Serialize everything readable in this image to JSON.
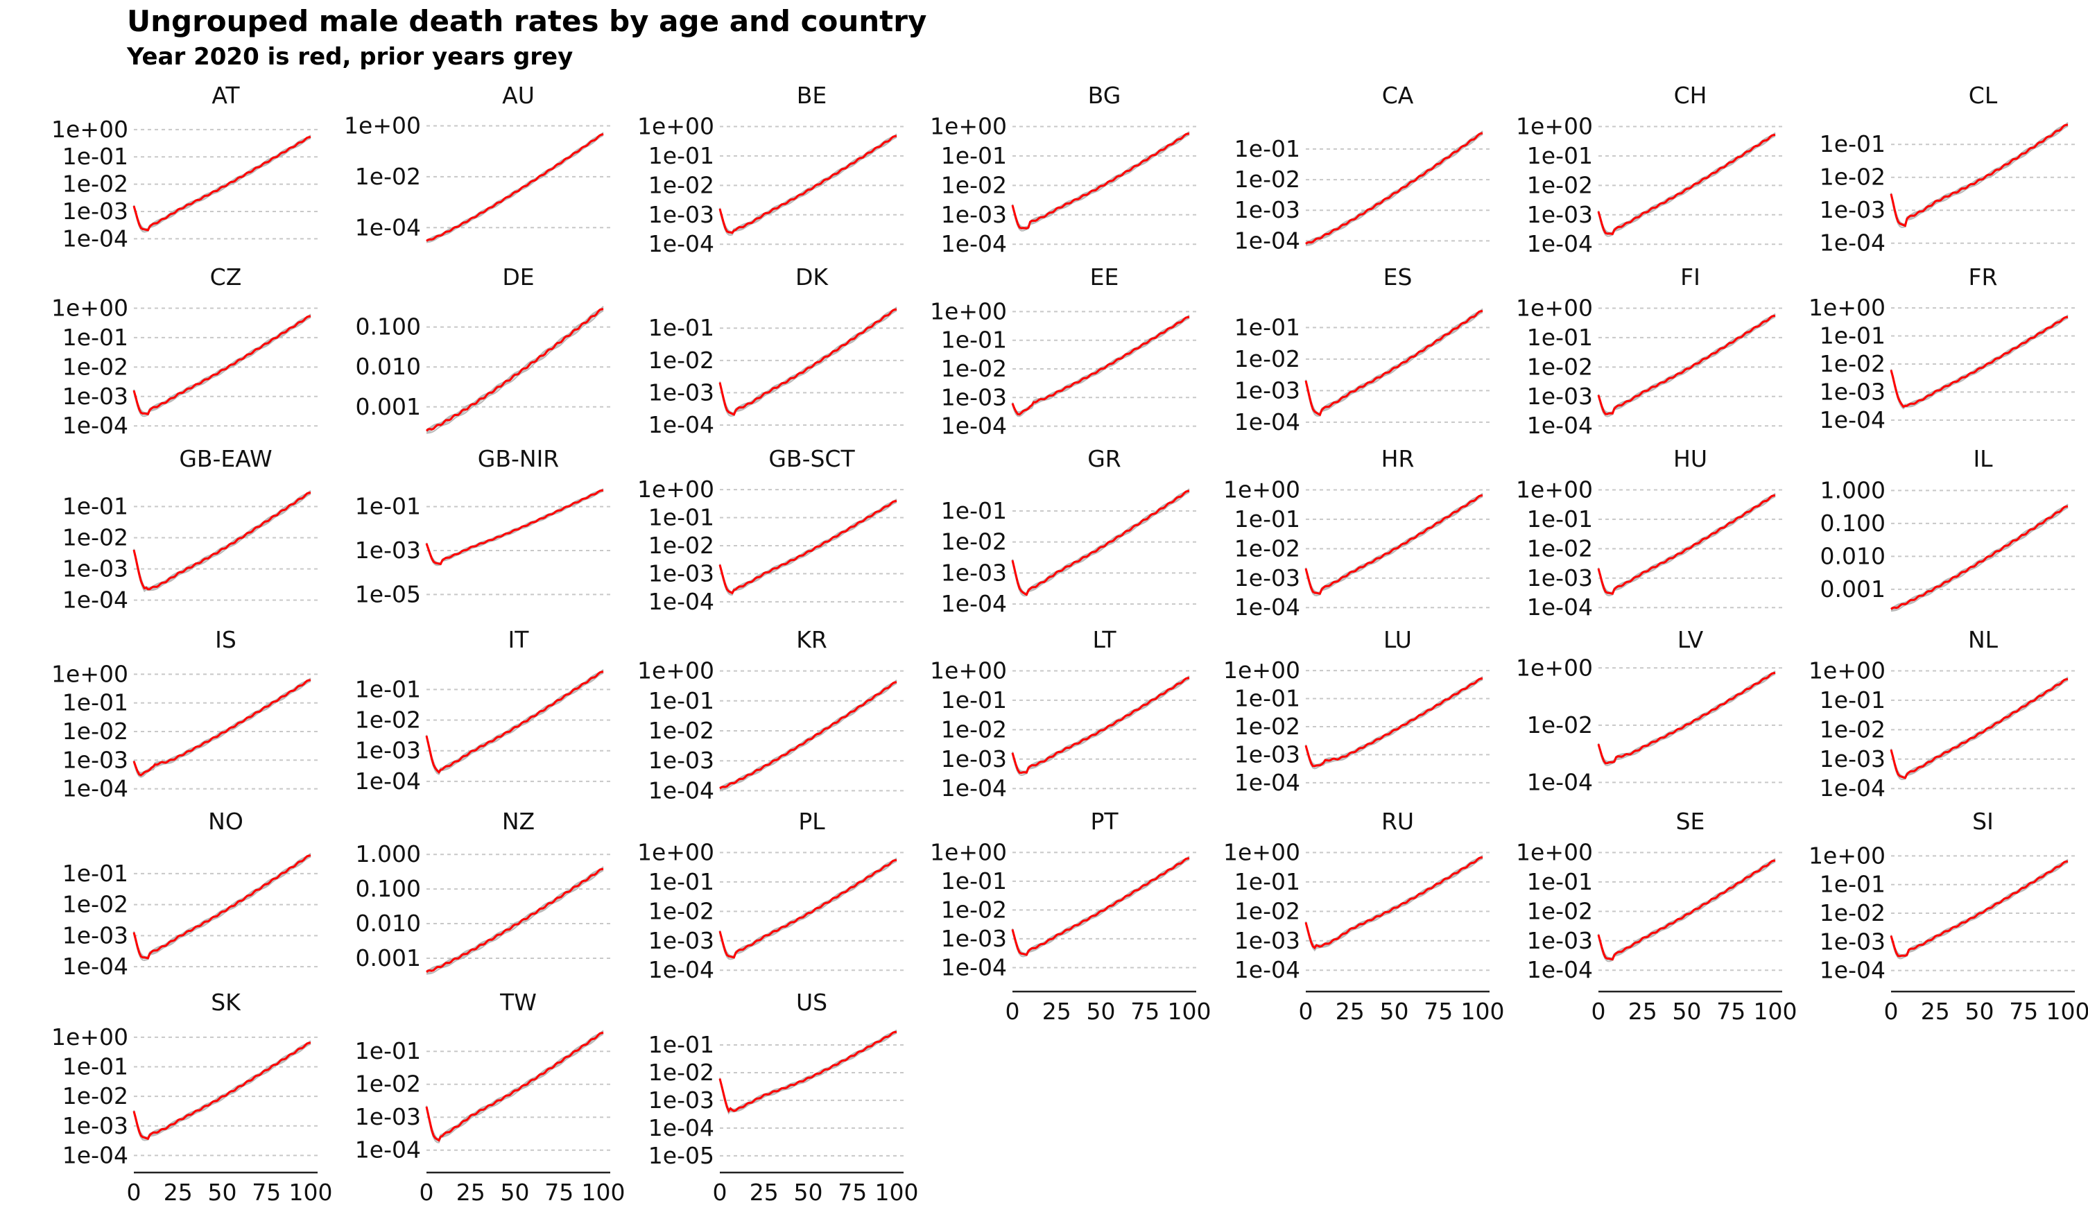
{
  "title": "Ungrouped male death rates by age and country",
  "subtitle": "Year 2020 is red, prior years grey",
  "chart_data": {
    "type": "line",
    "layout": "small multiples, 7 columns x 6 rows",
    "x_axis": {
      "ticks": [
        0,
        25,
        50,
        75,
        100
      ],
      "labels": [
        "0",
        "25",
        "50",
        "75",
        "100"
      ],
      "range": [
        0,
        100
      ]
    },
    "y_scale": "log",
    "colors": {
      "year_2020": "#ff0000",
      "prior_years": "#b9b9b9"
    },
    "grid": "horizontal dashed",
    "panels": [
      {
        "code": "AT",
        "ticks": [
          1,
          0.1,
          0.01,
          0.001,
          0.0001
        ],
        "labels": [
          "1e+00",
          "1e-01",
          "1e-02",
          "1e-03",
          "1e-04"
        ],
        "ylim": [
          3e-05,
          2
        ],
        "shape": "typical",
        "params": {
          "i": 0.0015,
          "m": 4e-05,
          "ma": 9,
          "h": 0.0006,
          "ha": 25,
          "e": 0.5
        }
      },
      {
        "code": "AU",
        "ticks": [
          1,
          0.01,
          0.0001
        ],
        "labels": [
          "1e+00",
          "1e-02",
          "1e-04"
        ],
        "ylim": [
          1e-05,
          1.5
        ],
        "shape": "linear",
        "params": {
          "a": 3e-05,
          "b": 0.5
        }
      },
      {
        "code": "BE",
        "ticks": [
          1,
          0.1,
          0.01,
          0.001,
          0.0001
        ],
        "labels": [
          "1e+00",
          "1e-01",
          "1e-02",
          "1e-03",
          "1e-04"
        ],
        "ylim": [
          5e-05,
          1.5
        ],
        "shape": "typical",
        "params": {
          "i": 0.0015,
          "m": 8e-05,
          "ma": 8,
          "h": 0.0005,
          "ha": 22,
          "e": 0.45
        }
      },
      {
        "code": "BG",
        "ticks": [
          1,
          0.1,
          0.01,
          0.001,
          0.0001
        ],
        "labels": [
          "1e+00",
          "1e-01",
          "1e-02",
          "1e-03",
          "1e-04"
        ],
        "ylim": [
          5e-05,
          1.5
        ],
        "shape": "typical",
        "params": {
          "i": 0.002,
          "m": 0.00015,
          "ma": 10,
          "h": 0.001,
          "ha": 22,
          "e": 0.5
        }
      },
      {
        "code": "CA",
        "ticks": [
          0.1,
          0.01,
          0.001,
          0.0001
        ],
        "labels": [
          "1e-01",
          "1e-02",
          "1e-03",
          "1e-04"
        ],
        "ylim": [
          4e-05,
          0.8
        ],
        "shape": "linear",
        "params": {
          "a": 8e-05,
          "b": 0.35
        }
      },
      {
        "code": "CH",
        "ticks": [
          1,
          0.1,
          0.01,
          0.001,
          0.0001
        ],
        "labels": [
          "1e+00",
          "1e-01",
          "1e-02",
          "1e-03",
          "1e-04"
        ],
        "ylim": [
          5e-05,
          1.5
        ],
        "shape": "typical",
        "params": {
          "i": 0.0012,
          "m": 6e-05,
          "ma": 9,
          "h": 0.0005,
          "ha": 22,
          "e": 0.5
        }
      },
      {
        "code": "CL",
        "ticks": [
          0.1,
          0.01,
          0.001,
          0.0001
        ],
        "labels": [
          "1e-01",
          "1e-02",
          "1e-03",
          "1e-04"
        ],
        "ylim": [
          5e-05,
          0.5
        ],
        "shape": "typical",
        "params": {
          "i": 0.003,
          "m": 0.00015,
          "ma": 9,
          "h": 0.0015,
          "ha": 22,
          "e": 0.25
        }
      },
      {
        "code": "CZ",
        "ticks": [
          1,
          0.1,
          0.01,
          0.001,
          0.0001
        ],
        "labels": [
          "1e+00",
          "1e-01",
          "1e-02",
          "1e-03",
          "1e-04"
        ],
        "ylim": [
          5e-05,
          1.5
        ],
        "shape": "typical",
        "params": {
          "i": 0.0015,
          "m": 8e-05,
          "ma": 9,
          "h": 0.0006,
          "ha": 22,
          "e": 0.5
        }
      },
      {
        "code": "DE",
        "ticks": [
          0.1,
          0.01,
          0.001
        ],
        "labels": [
          "0.100",
          "0.010",
          "0.001"
        ],
        "ylim": [
          0.0002,
          0.4
        ],
        "shape": "linear",
        "params": {
          "a": 0.00025,
          "b": 0.3
        }
      },
      {
        "code": "DK",
        "ticks": [
          0.1,
          0.01,
          0.001,
          0.0001
        ],
        "labels": [
          "1e-01",
          "1e-02",
          "1e-03",
          "1e-04"
        ],
        "ylim": [
          5e-05,
          0.6
        ],
        "shape": "typical",
        "params": {
          "i": 0.002,
          "m": 8e-05,
          "ma": 9,
          "h": 0.0005,
          "ha": 22,
          "e": 0.35
        }
      },
      {
        "code": "EE",
        "ticks": [
          1,
          0.1,
          0.01,
          0.001,
          0.0001
        ],
        "labels": [
          "1e+00",
          "1e-01",
          "1e-02",
          "1e-03",
          "1e-04"
        ],
        "ylim": [
          5e-05,
          2
        ],
        "shape": "typical",
        "params": {
          "i": 0.0005,
          "m": 0.00022,
          "ma": 12,
          "h": 0.0008,
          "ha": 22,
          "e": 0.6
        }
      },
      {
        "code": "ES",
        "ticks": [
          0.1,
          0.01,
          0.001,
          0.0001
        ],
        "labels": [
          "1e-01",
          "1e-02",
          "1e-03",
          "1e-04"
        ],
        "ylim": [
          4e-05,
          0.6
        ],
        "shape": "typical",
        "params": {
          "i": 0.002,
          "m": 5e-05,
          "ma": 9,
          "h": 0.0005,
          "ha": 22,
          "e": 0.3
        }
      },
      {
        "code": "FI",
        "ticks": [
          1,
          0.1,
          0.01,
          0.001,
          0.0001
        ],
        "labels": [
          "1e+00",
          "1e-01",
          "1e-02",
          "1e-03",
          "1e-04"
        ],
        "ylim": [
          5e-05,
          1.5
        ],
        "shape": "typical",
        "params": {
          "i": 0.001,
          "m": 8e-05,
          "ma": 9,
          "h": 0.0008,
          "ha": 22,
          "e": 0.5
        }
      },
      {
        "code": "FR",
        "ticks": [
          1,
          0.1,
          0.01,
          0.001,
          0.0001
        ],
        "labels": [
          "1e+00",
          "1e-01",
          "1e-02",
          "1e-03",
          "1e-04"
        ],
        "ylim": [
          3e-05,
          1.5
        ],
        "shape": "typical",
        "params": {
          "i": 0.006,
          "m": 8e-05,
          "ma": 8,
          "h": 0.0005,
          "ha": 22,
          "e": 0.45
        }
      },
      {
        "code": "GB-EAW",
        "ticks": [
          0.1,
          0.01,
          0.001,
          0.0001
        ],
        "labels": [
          "1e-01",
          "1e-02",
          "1e-03",
          "1e-04"
        ],
        "ylim": [
          3e-05,
          0.5
        ],
        "shape": "typical",
        "params": {
          "i": 0.004,
          "m": 5e-05,
          "ma": 7,
          "h": 0.0004,
          "ha": 20,
          "e": 0.25
        }
      },
      {
        "code": "GB-NIR",
        "ticks": [
          0.1,
          0.001,
          1e-05
        ],
        "labels": [
          "1e-01",
          "1e-03",
          "1e-05"
        ],
        "ylim": [
          1e-06,
          1
        ],
        "shape": "typical",
        "params": {
          "i": 0.002,
          "m": 5e-05,
          "ma": 9,
          "h": 0.0008,
          "ha": 22,
          "e": 0.5
        }
      },
      {
        "code": "GB-SCT",
        "ticks": [
          1,
          0.1,
          0.01,
          0.001,
          0.0001
        ],
        "labels": [
          "1e+00",
          "1e-01",
          "1e-02",
          "1e-03",
          "1e-04"
        ],
        "ylim": [
          3e-05,
          1.5
        ],
        "shape": "typical",
        "params": {
          "i": 0.002,
          "m": 5e-05,
          "ma": 8,
          "h": 0.0006,
          "ha": 22,
          "e": 0.35
        }
      },
      {
        "code": "GR",
        "ticks": [
          0.1,
          0.01,
          0.001,
          0.0001
        ],
        "labels": [
          "1e-01",
          "1e-02",
          "1e-03",
          "1e-04"
        ],
        "ylim": [
          4e-05,
          0.7
        ],
        "shape": "typical",
        "params": {
          "i": 0.0025,
          "m": 5e-05,
          "ma": 9,
          "h": 0.0006,
          "ha": 24,
          "e": 0.4
        }
      },
      {
        "code": "HR",
        "ticks": [
          1,
          0.1,
          0.01,
          0.001,
          0.0001
        ],
        "labels": [
          "1e+00",
          "1e-01",
          "1e-02",
          "1e-03",
          "1e-04"
        ],
        "ylim": [
          5e-05,
          1.5
        ],
        "shape": "typical",
        "params": {
          "i": 0.002,
          "m": 8e-05,
          "ma": 9,
          "h": 0.0008,
          "ha": 22,
          "e": 0.6
        }
      },
      {
        "code": "HU",
        "ticks": [
          1,
          0.1,
          0.01,
          0.001,
          0.0001
        ],
        "labels": [
          "1e+00",
          "1e-01",
          "1e-02",
          "1e-03",
          "1e-04"
        ],
        "ylim": [
          5e-05,
          1.5
        ],
        "shape": "typical",
        "params": {
          "i": 0.002,
          "m": 8e-05,
          "ma": 9,
          "h": 0.0008,
          "ha": 22,
          "e": 0.6
        }
      },
      {
        "code": "IL",
        "ticks": [
          1,
          0.1,
          0.01,
          0.001
        ],
        "labels": [
          "1.000",
          "0.100",
          "0.010",
          "0.001"
        ],
        "ylim": [
          0.00015,
          1.5
        ],
        "shape": "linear",
        "params": {
          "a": 0.00025,
          "b": 0.35
        }
      },
      {
        "code": "IS",
        "ticks": [
          1,
          0.1,
          0.01,
          0.001,
          0.0001
        ],
        "labels": [
          "1e+00",
          "1e-01",
          "1e-02",
          "1e-03",
          "1e-04"
        ],
        "ylim": [
          5e-05,
          2
        ],
        "shape": "typical",
        "params": {
          "i": 0.0008,
          "m": 0.0003,
          "ma": 12,
          "h": 0.0006,
          "ha": 22,
          "e": 0.6
        }
      },
      {
        "code": "IT",
        "ticks": [
          0.1,
          0.01,
          0.001,
          0.0001
        ],
        "labels": [
          "1e-01",
          "1e-02",
          "1e-03",
          "1e-04"
        ],
        "ylim": [
          3e-05,
          0.6
        ],
        "shape": "typical",
        "params": {
          "i": 0.003,
          "m": 4e-05,
          "ma": 8,
          "h": 0.0005,
          "ha": 22,
          "e": 0.35
        }
      },
      {
        "code": "KR",
        "ticks": [
          1,
          0.1,
          0.01,
          0.001,
          0.0001
        ],
        "labels": [
          "1e+00",
          "1e-01",
          "1e-02",
          "1e-03",
          "1e-04"
        ],
        "ylim": [
          6e-05,
          1.5
        ],
        "shape": "linear",
        "params": {
          "a": 0.00012,
          "b": 0.45
        }
      },
      {
        "code": "LT",
        "ticks": [
          1,
          0.1,
          0.01,
          0.001,
          0.0001
        ],
        "labels": [
          "1e+00",
          "1e-01",
          "1e-02",
          "1e-03",
          "1e-04"
        ],
        "ylim": [
          5e-05,
          1.5
        ],
        "shape": "typical",
        "params": {
          "i": 0.0015,
          "m": 0.00015,
          "ma": 9,
          "h": 0.001,
          "ha": 22,
          "e": 0.5
        }
      },
      {
        "code": "LU",
        "ticks": [
          1,
          0.1,
          0.01,
          0.001,
          0.0001
        ],
        "labels": [
          "1e+00",
          "1e-01",
          "1e-02",
          "1e-03",
          "1e-04"
        ],
        "ylim": [
          3e-05,
          1.5
        ],
        "shape": "typical",
        "params": {
          "i": 0.002,
          "m": 0.0003,
          "ma": 11,
          "h": 0.0005,
          "ha": 22,
          "e": 0.5
        }
      },
      {
        "code": "LV",
        "ticks": [
          1,
          0.01,
          0.0001
        ],
        "labels": [
          "1e+00",
          "1e-02",
          "1e-04"
        ],
        "ylim": [
          3e-05,
          1.2
        ],
        "shape": "typical",
        "params": {
          "i": 0.002,
          "m": 0.0003,
          "ma": 10,
          "h": 0.001,
          "ha": 22,
          "e": 0.6
        }
      },
      {
        "code": "NL",
        "ticks": [
          1,
          0.1,
          0.01,
          0.001,
          0.0001
        ],
        "labels": [
          "1e+00",
          "1e-01",
          "1e-02",
          "1e-03",
          "1e-04"
        ],
        "ylim": [
          5e-05,
          1.5
        ],
        "shape": "typical",
        "params": {
          "i": 0.002,
          "m": 6e-05,
          "ma": 9,
          "h": 0.0005,
          "ha": 22,
          "e": 0.5
        }
      },
      {
        "code": "NO",
        "ticks": [
          0.1,
          0.01,
          0.001,
          0.0001
        ],
        "labels": [
          "1e-01",
          "1e-02",
          "1e-03",
          "1e-04"
        ],
        "ylim": [
          4e-05,
          0.7
        ],
        "shape": "typical",
        "params": {
          "i": 0.0012,
          "m": 6e-05,
          "ma": 9,
          "h": 0.0005,
          "ha": 22,
          "e": 0.35
        }
      },
      {
        "code": "NZ",
        "ticks": [
          1,
          0.1,
          0.01,
          0.001
        ],
        "labels": [
          "1.000",
          "0.100",
          "0.010",
          "0.001"
        ],
        "ylim": [
          0.00025,
          1.6
        ],
        "shape": "linear",
        "params": {
          "a": 0.0004,
          "b": 0.4
        }
      },
      {
        "code": "PL",
        "ticks": [
          1,
          0.1,
          0.01,
          0.001,
          0.0001
        ],
        "labels": [
          "1e+00",
          "1e-01",
          "1e-02",
          "1e-03",
          "1e-04"
        ],
        "ylim": [
          5e-05,
          1.5
        ],
        "shape": "typical",
        "params": {
          "i": 0.002,
          "m": 8e-05,
          "ma": 9,
          "h": 0.0008,
          "ha": 22,
          "e": 0.5
        }
      },
      {
        "code": "PT",
        "ticks": [
          1,
          0.1,
          0.01,
          0.001,
          0.0001
        ],
        "labels": [
          "1e+00",
          "1e-01",
          "1e-02",
          "1e-03",
          "1e-04"
        ],
        "ylim": [
          4e-05,
          1.5
        ],
        "shape": "typical",
        "params": {
          "i": 0.002,
          "m": 8e-05,
          "ma": 9,
          "h": 0.0006,
          "ha": 22,
          "e": 0.6
        }
      },
      {
        "code": "RU",
        "ticks": [
          1,
          0.1,
          0.01,
          0.001,
          0.0001
        ],
        "labels": [
          "1e+00",
          "1e-01",
          "1e-02",
          "1e-03",
          "1e-04"
        ],
        "ylim": [
          5e-05,
          1.5
        ],
        "shape": "typical",
        "params": {
          "i": 0.004,
          "m": 0.0002,
          "ma": 6,
          "h": 0.002,
          "ha": 25,
          "e": 0.5
        }
      },
      {
        "code": "SE",
        "ticks": [
          1,
          0.1,
          0.01,
          0.001,
          0.0001
        ],
        "labels": [
          "1e+00",
          "1e-01",
          "1e-02",
          "1e-03",
          "1e-04"
        ],
        "ylim": [
          5e-05,
          1.5
        ],
        "shape": "typical",
        "params": {
          "i": 0.0015,
          "m": 6e-05,
          "ma": 9,
          "h": 0.0006,
          "ha": 22,
          "e": 0.5
        }
      },
      {
        "code": "SI",
        "ticks": [
          1,
          0.1,
          0.01,
          0.001,
          0.0001
        ],
        "labels": [
          "1e+00",
          "1e-01",
          "1e-02",
          "1e-03",
          "1e-04"
        ],
        "ylim": [
          5e-05,
          2
        ],
        "shape": "typical",
        "params": {
          "i": 0.0015,
          "m": 0.00012,
          "ma": 10,
          "h": 0.0008,
          "ha": 22,
          "e": 0.6
        }
      },
      {
        "code": "SK",
        "ticks": [
          1,
          0.1,
          0.01,
          0.001,
          0.0001
        ],
        "labels": [
          "1e+00",
          "1e-01",
          "1e-02",
          "1e-03",
          "1e-04"
        ],
        "ylim": [
          7e-05,
          2
        ],
        "shape": "typical",
        "params": {
          "i": 0.003,
          "m": 0.00015,
          "ma": 9,
          "h": 0.0008,
          "ha": 22,
          "e": 0.6
        }
      },
      {
        "code": "TW",
        "ticks": [
          0.1,
          0.01,
          0.001,
          0.0001
        ],
        "labels": [
          "1e-01",
          "1e-02",
          "1e-03",
          "1e-04"
        ],
        "ylim": [
          5e-05,
          0.5
        ],
        "shape": "typical",
        "params": {
          "i": 0.002,
          "m": 5e-05,
          "ma": 8,
          "h": 0.0008,
          "ha": 25,
          "e": 0.3
        }
      },
      {
        "code": "US",
        "ticks": [
          0.1,
          0.01,
          0.001,
          0.0001,
          1e-05
        ],
        "labels": [
          "1e-01",
          "1e-02",
          "1e-03",
          "1e-04",
          "1e-05"
        ],
        "ylim": [
          7e-06,
          0.4
        ],
        "shape": "typical",
        "params": {
          "i": 0.006,
          "m": 2e-05,
          "ma": 6,
          "h": 0.0012,
          "ha": 18,
          "e": 0.18
        }
      }
    ]
  }
}
